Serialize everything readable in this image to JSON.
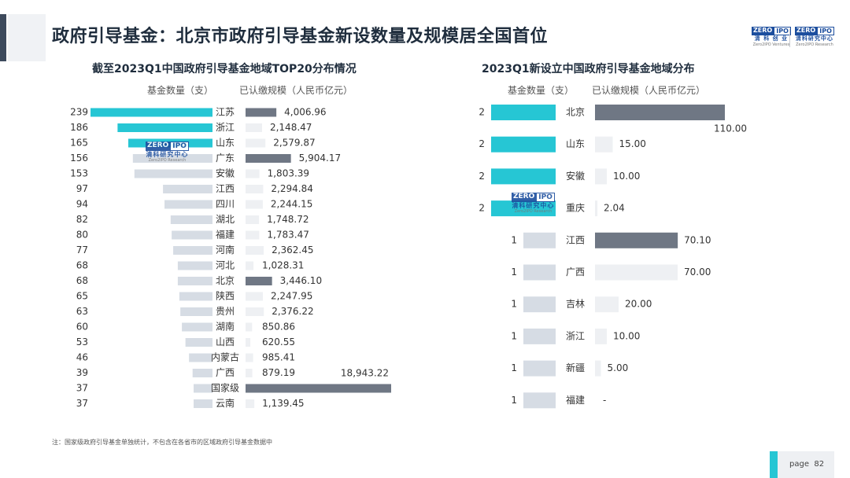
{
  "header": {
    "title": "政府引导基金：北京市政府引导基金新设数量及规模居全国首位"
  },
  "logos": {
    "mark_left": "ZERO",
    "mark_right": "IPO",
    "logo1_cn": "清 科 创 业",
    "logo1_en": "Zero2IPO Ventures",
    "logo2_cn": "清科研究中心",
    "logo2_en": "Zero2IPO Research"
  },
  "watermark": {
    "mark_left": "ZERO",
    "mark_right": "IPO",
    "cn": "清科研究中心",
    "en": "Zero2IPO Research"
  },
  "footnote": "注：国家级政府引导基金单独统计，不包含在各省市的区域政府引导基金数据中",
  "page": {
    "label": "page",
    "number": "82"
  },
  "colors": {
    "highlight": "#26c6d4",
    "muted_count": "#d6dce4",
    "highlight_scale": "#6f7784",
    "muted_scale": "#eef0f3",
    "title": "#1f2d3d"
  },
  "chart_data": [
    {
      "type": "bar",
      "title": "截至2023Q1中国政府引导基金地域TOP20分布情况",
      "count_label": "基金数量（支）",
      "scale_label": "已认缴规模（人民币亿元）",
      "categories": [
        "江苏",
        "浙江",
        "山东",
        "广东",
        "安徽",
        "江西",
        "四川",
        "湖北",
        "福建",
        "河南",
        "河北",
        "北京",
        "陕西",
        "贵州",
        "湖南",
        "山西",
        "内蒙古",
        "广西",
        "国家级",
        "云南"
      ],
      "series": [
        {
          "name": "基金数量（支）",
          "values": [
            239,
            186,
            165,
            156,
            153,
            97,
            94,
            82,
            80,
            77,
            68,
            68,
            65,
            63,
            60,
            53,
            46,
            39,
            37,
            37
          ]
        },
        {
          "name": "已认缴规模（人民币亿元）",
          "values": [
            4006.96,
            2148.47,
            2579.87,
            5904.17,
            1803.39,
            2294.84,
            2244.15,
            1748.72,
            1783.47,
            2362.45,
            1028.31,
            3446.1,
            2247.95,
            2376.22,
            850.86,
            620.55,
            985.41,
            879.19,
            18943.22,
            1139.45
          ]
        }
      ],
      "count_labels": [
        "239",
        "186",
        "165",
        "156",
        "153",
        "97",
        "94",
        "82",
        "80",
        "77",
        "68",
        "68",
        "65",
        "63",
        "60",
        "53",
        "46",
        "39",
        "37",
        "37"
      ],
      "scale_labels": [
        "4,006.96",
        "2,148.47",
        "2,579.87",
        "5,904.17",
        "1,803.39",
        "2,294.84",
        "2,244.15",
        "1,748.72",
        "1,783.47",
        "2,362.45",
        "1,028.31",
        "3,446.10",
        "2,247.95",
        "2,376.22",
        "850.86",
        "620.55",
        "985.41",
        "879.19",
        "18,943.22",
        "1,139.45"
      ],
      "highlight_count": [
        true,
        true,
        true,
        false,
        false,
        false,
        false,
        false,
        false,
        false,
        false,
        false,
        false,
        false,
        false,
        false,
        false,
        false,
        false,
        false
      ],
      "highlight_scale": [
        true,
        false,
        false,
        true,
        false,
        false,
        false,
        false,
        false,
        false,
        false,
        true,
        false,
        false,
        false,
        false,
        false,
        false,
        true,
        false
      ]
    },
    {
      "type": "bar",
      "title": "2023Q1新设立中国政府引导基金地域分布",
      "count_label": "基金数量（支）",
      "scale_label": "已认缴规模（人民币亿元）",
      "categories": [
        "北京",
        "山东",
        "安徽",
        "重庆",
        "江西",
        "广西",
        "吉林",
        "浙江",
        "新疆",
        "福建"
      ],
      "series": [
        {
          "name": "基金数量（支）",
          "values": [
            2,
            2,
            2,
            2,
            1,
            1,
            1,
            1,
            1,
            1
          ]
        },
        {
          "name": "已认缴规模（人民币亿元）",
          "values": [
            110.0,
            15.0,
            10.0,
            2.04,
            70.1,
            70.0,
            20.0,
            10.0,
            5.0,
            null
          ]
        }
      ],
      "count_labels": [
        "2",
        "2",
        "2",
        "2",
        "1",
        "1",
        "1",
        "1",
        "1",
        "1"
      ],
      "scale_labels": [
        "110.00",
        "15.00",
        "10.00",
        "2.04",
        "70.10",
        "70.00",
        "20.00",
        "10.00",
        "5.00",
        "-"
      ],
      "highlight_count": [
        true,
        true,
        true,
        true,
        false,
        false,
        false,
        false,
        false,
        false
      ],
      "highlight_scale": [
        true,
        false,
        false,
        false,
        true,
        false,
        false,
        false,
        false,
        false
      ]
    }
  ]
}
